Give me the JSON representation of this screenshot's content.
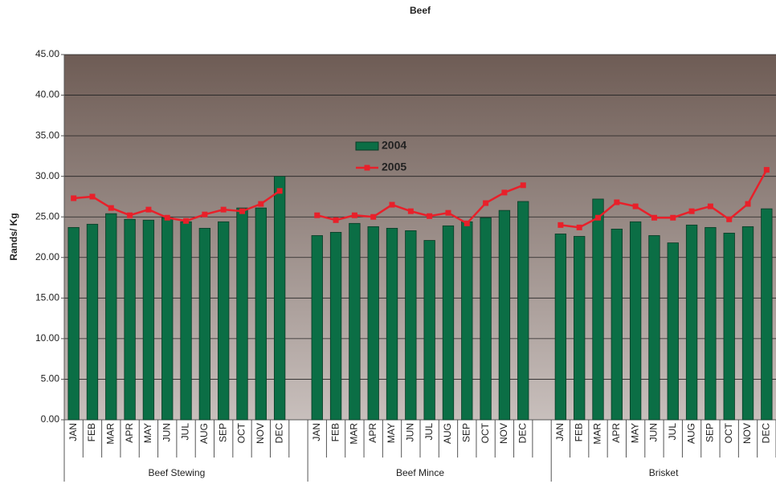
{
  "chart_data": {
    "type": "bar-line",
    "title": "Beef",
    "y_label": "Rands/ Kg",
    "categories": [
      "JAN",
      "FEB",
      "MAR",
      "APR",
      "MAY",
      "JUN",
      "JUL",
      "AUG",
      "SEP",
      "OCT",
      "NOV",
      "DEC",
      null,
      "JAN",
      "FEB",
      "MAR",
      "APR",
      "MAY",
      "JUN",
      "JUL",
      "AUG",
      "SEP",
      "OCT",
      "NOV",
      "DEC",
      null,
      "JAN",
      "FEB",
      "MAR",
      "APR",
      "MAY",
      "JUN",
      "JUL",
      "AUG",
      "SEP",
      "OCT",
      "NOV",
      "DEC"
    ],
    "groups": [
      "Beef Stewing",
      "Beef Mince",
      "Brisket"
    ],
    "series": [
      {
        "name": "2004",
        "type": "bar",
        "color": "#0b6e45",
        "values": [
          23.7,
          24.1,
          25.4,
          24.7,
          24.6,
          24.9,
          24.4,
          23.6,
          24.4,
          26.1,
          26.1,
          30.0,
          null,
          22.7,
          23.1,
          24.2,
          23.8,
          23.6,
          23.3,
          22.1,
          23.9,
          24.4,
          24.9,
          25.8,
          26.9,
          null,
          22.9,
          22.6,
          27.2,
          23.5,
          24.4,
          22.7,
          21.8,
          24.0,
          23.7,
          23.0,
          23.8,
          26.0
        ]
      },
      {
        "name": "2005",
        "type": "line",
        "color": "#e8202a",
        "values": [
          27.3,
          27.5,
          26.1,
          25.2,
          25.9,
          24.9,
          24.5,
          25.3,
          25.9,
          25.7,
          26.6,
          28.2,
          null,
          25.2,
          24.6,
          25.2,
          25.0,
          26.5,
          25.7,
          25.1,
          25.5,
          24.2,
          26.7,
          28.0,
          28.9,
          null,
          24.0,
          23.7,
          24.9,
          26.8,
          26.3,
          24.9,
          24.9,
          25.7,
          26.3,
          24.7,
          26.6,
          30.8
        ]
      }
    ],
    "ylim": [
      0,
      45
    ],
    "yticks": [
      {
        "value": 0,
        "label": "0.00"
      },
      {
        "value": 5,
        "label": "5.00"
      },
      {
        "value": 10,
        "label": "10.00"
      },
      {
        "value": 15,
        "label": "15.00"
      },
      {
        "value": 20,
        "label": "20.00"
      },
      {
        "value": 25,
        "label": "25.00"
      },
      {
        "value": 30,
        "label": "30.00"
      },
      {
        "value": 35,
        "label": "35.00"
      },
      {
        "value": 40,
        "label": "40.00"
      },
      {
        "value": 45,
        "label": "45.00"
      }
    ],
    "grid": true
  }
}
